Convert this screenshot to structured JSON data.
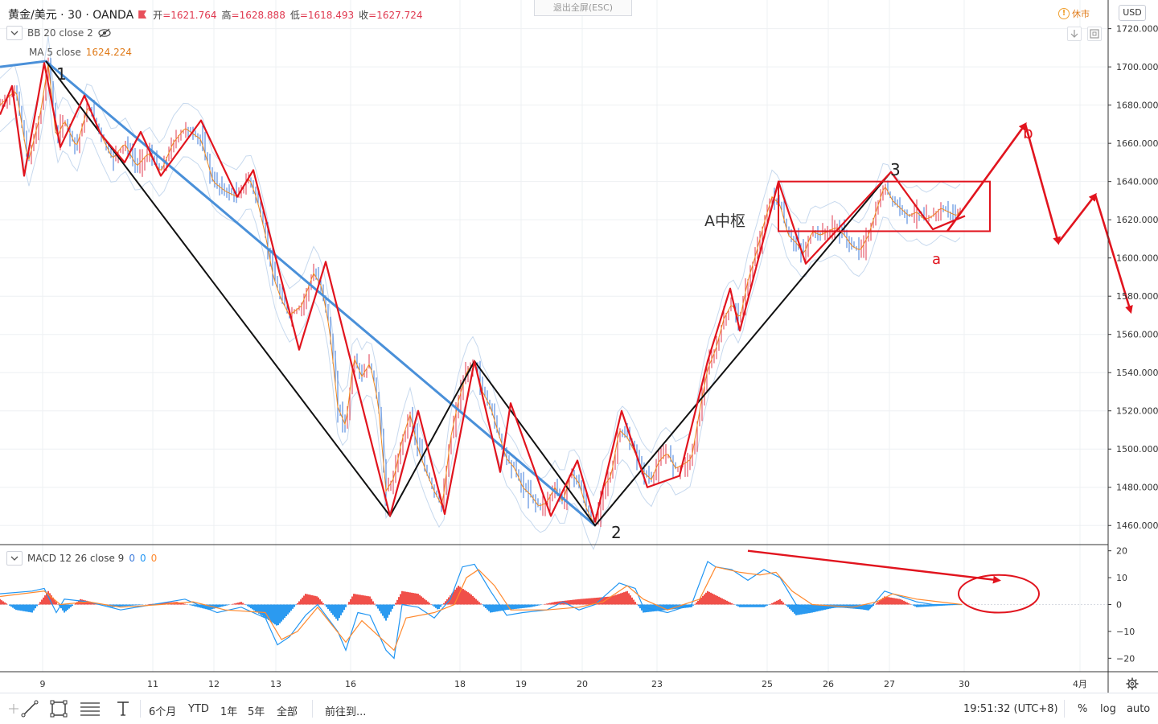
{
  "header": {
    "symbol": "黄金/美元 · 30 · OANDA",
    "ohlc": [
      {
        "label": "开",
        "value": "=1621.764"
      },
      {
        "label": "高",
        "value": "=1628.888"
      },
      {
        "label": "低",
        "value": "=1618.493"
      },
      {
        "label": "收",
        "value": "=1627.724"
      }
    ],
    "esc_label": "退出全屏(ESC)",
    "closed_label": "休市",
    "currency": "USD"
  },
  "indicators": {
    "bb_label": "BB 20 close 2",
    "ma_label": "MA 5 close",
    "ma_value": "1624.224",
    "macd_label": "MACD 12 26 close 9",
    "macd_values": [
      "0",
      "0",
      "0"
    ]
  },
  "colors": {
    "up": "#e0384f",
    "down": "#3d7bdb",
    "wave_red": "#e1141e",
    "trend_black": "#111111",
    "trend_blue": "#4a90d9",
    "macd_line": "#2196f3",
    "signal_line": "#ff8a30",
    "hist_pos": "#f0504a",
    "hist_neg": "#2b9af0"
  },
  "chart_data": {
    "type": "line",
    "title": "黄金/美元 · 30 · OANDA",
    "y_axis": {
      "min": 1450,
      "max": 1735,
      "ticks": [
        "1460.000",
        "1480.000",
        "1500.000",
        "1520.000",
        "1540.000",
        "1560.000",
        "1580.000",
        "1600.000",
        "1620.000",
        "1640.000",
        "1660.000",
        "1680.000",
        "1700.000",
        "1720.000"
      ],
      "tick_values": [
        1460,
        1480,
        1500,
        1520,
        1540,
        1560,
        1580,
        1600,
        1620,
        1640,
        1660,
        1680,
        1700,
        1720
      ]
    },
    "x_axis": {
      "labels": [
        "9",
        "11",
        "12",
        "13",
        "16",
        "18",
        "19",
        "20",
        "23",
        "25",
        "26",
        "27",
        "30",
        "4月"
      ],
      "units": "bar index (30-min bars)"
    },
    "macd_axis": {
      "min": -25,
      "max": 22,
      "ticks": [
        "20",
        "10",
        "0",
        "−10",
        "−20"
      ],
      "tick_values": [
        20,
        10,
        0,
        -10,
        -20
      ]
    },
    "price_series": {
      "name": "price",
      "points": [
        [
          0,
          1680
        ],
        [
          20,
          1688
        ],
        [
          35,
          1650
        ],
        [
          50,
          1675
        ],
        [
          60,
          1702
        ],
        [
          70,
          1662
        ],
        [
          80,
          1672
        ],
        [
          95,
          1658
        ],
        [
          110,
          1680
        ],
        [
          125,
          1665
        ],
        [
          140,
          1652
        ],
        [
          155,
          1660
        ],
        [
          170,
          1648
        ],
        [
          185,
          1655
        ],
        [
          200,
          1645
        ],
        [
          215,
          1660
        ],
        [
          230,
          1668
        ],
        [
          250,
          1662
        ],
        [
          265,
          1640
        ],
        [
          280,
          1635
        ],
        [
          295,
          1632
        ],
        [
          310,
          1642
        ],
        [
          320,
          1630
        ],
        [
          330,
          1612
        ],
        [
          340,
          1590
        ],
        [
          350,
          1578
        ],
        [
          360,
          1570
        ],
        [
          375,
          1575
        ],
        [
          390,
          1592
        ],
        [
          400,
          1585
        ],
        [
          410,
          1562
        ],
        [
          420,
          1522
        ],
        [
          430,
          1512
        ],
        [
          440,
          1548
        ],
        [
          450,
          1538
        ],
        [
          460,
          1545
        ],
        [
          470,
          1525
        ],
        [
          480,
          1478
        ],
        [
          490,
          1485
        ],
        [
          500,
          1505
        ],
        [
          510,
          1518
        ],
        [
          520,
          1500
        ],
        [
          530,
          1488
        ],
        [
          540,
          1478
        ],
        [
          550,
          1470
        ],
        [
          560,
          1505
        ],
        [
          570,
          1525
        ],
        [
          580,
          1540
        ],
        [
          590,
          1546
        ],
        [
          600,
          1530
        ],
        [
          610,
          1522
        ],
        [
          620,
          1508
        ],
        [
          630,
          1495
        ],
        [
          640,
          1490
        ],
        [
          650,
          1480
        ],
        [
          660,
          1476
        ],
        [
          670,
          1470
        ],
        [
          680,
          1472
        ],
        [
          690,
          1480
        ],
        [
          700,
          1472
        ],
        [
          710,
          1488
        ],
        [
          720,
          1482
        ],
        [
          730,
          1468
        ],
        [
          740,
          1460
        ],
        [
          750,
          1480
        ],
        [
          760,
          1486
        ],
        [
          770,
          1510
        ],
        [
          780,
          1506
        ],
        [
          790,
          1498
        ],
        [
          800,
          1488
        ],
        [
          810,
          1484
        ],
        [
          820,
          1494
        ],
        [
          830,
          1498
        ],
        [
          840,
          1490
        ],
        [
          850,
          1492
        ],
        [
          860,
          1495
        ],
        [
          870,
          1520
        ],
        [
          880,
          1542
        ],
        [
          890,
          1552
        ],
        [
          900,
          1568
        ],
        [
          910,
          1576
        ],
        [
          920,
          1568
        ],
        [
          930,
          1588
        ],
        [
          940,
          1602
        ],
        [
          950,
          1618
        ],
        [
          960,
          1632
        ],
        [
          970,
          1628
        ],
        [
          980,
          1612
        ],
        [
          990,
          1608
        ],
        [
          1000,
          1602
        ],
        [
          1010,
          1614
        ],
        [
          1020,
          1612
        ],
        [
          1030,
          1614
        ],
        [
          1040,
          1616
        ],
        [
          1050,
          1612
        ],
        [
          1060,
          1606
        ],
        [
          1070,
          1604
        ],
        [
          1080,
          1612
        ],
        [
          1090,
          1625
        ],
        [
          1100,
          1638
        ],
        [
          1110,
          1630
        ],
        [
          1120,
          1626
        ],
        [
          1130,
          1622
        ],
        [
          1140,
          1624
        ],
        [
          1150,
          1620
        ],
        [
          1160,
          1622
        ],
        [
          1170,
          1626
        ],
        [
          1180,
          1624
        ],
        [
          1190,
          1622
        ],
        [
          1196,
          1626
        ]
      ]
    },
    "red_zigzag": [
      [
        0,
        1675
      ],
      [
        15,
        1690
      ],
      [
        30,
        1643
      ],
      [
        55,
        1702
      ],
      [
        75,
        1658
      ],
      [
        105,
        1685
      ],
      [
        125,
        1665
      ],
      [
        155,
        1650
      ],
      [
        175,
        1666
      ],
      [
        200,
        1643
      ],
      [
        250,
        1672
      ],
      [
        295,
        1632
      ],
      [
        315,
        1646
      ],
      [
        372,
        1552
      ],
      [
        405,
        1598
      ],
      [
        485,
        1465
      ],
      [
        520,
        1520
      ],
      [
        553,
        1466
      ],
      [
        590,
        1546
      ],
      [
        622,
        1488
      ],
      [
        635,
        1524
      ],
      [
        685,
        1465
      ],
      [
        718,
        1494
      ],
      [
        740,
        1462
      ],
      [
        773,
        1520
      ],
      [
        805,
        1480
      ],
      [
        845,
        1486
      ],
      [
        880,
        1546
      ],
      [
        908,
        1584
      ],
      [
        920,
        1562
      ],
      [
        968,
        1640
      ],
      [
        1002,
        1597
      ],
      [
        1108,
        1645
      ],
      [
        1160,
        1615
      ],
      [
        1200,
        1622
      ]
    ],
    "black_zigzag": [
      [
        57,
        1703
      ],
      [
        485,
        1465
      ],
      [
        590,
        1546
      ],
      [
        740,
        1460
      ],
      [
        1108,
        1645
      ]
    ],
    "blue_trendline": [
      [
        0,
        1700
      ],
      [
        57,
        1703
      ],
      [
        740,
        1460
      ]
    ],
    "zhongshu_box": {
      "x0": 968,
      "x1": 1231,
      "y_low": 1614,
      "y_high": 1640
    },
    "projection": [
      [
        1178,
        1614
      ],
      [
        1275,
        1670
      ],
      [
        1316,
        1608
      ],
      [
        1362,
        1633
      ],
      [
        1406,
        1572
      ]
    ],
    "macd_series": {
      "macd": [
        [
          0,
          4
        ],
        [
          40,
          5
        ],
        [
          55,
          6
        ],
        [
          70,
          -3
        ],
        [
          80,
          2
        ],
        [
          110,
          1
        ],
        [
          150,
          -2
        ],
        [
          190,
          0
        ],
        [
          230,
          2
        ],
        [
          270,
          -3
        ],
        [
          300,
          -1
        ],
        [
          330,
          -5
        ],
        [
          345,
          -15
        ],
        [
          360,
          -12
        ],
        [
          380,
          -4
        ],
        [
          395,
          0
        ],
        [
          420,
          -10
        ],
        [
          430,
          -17
        ],
        [
          445,
          -3
        ],
        [
          460,
          -4
        ],
        [
          480,
          -17
        ],
        [
          490,
          -20
        ],
        [
          500,
          0
        ],
        [
          520,
          -1
        ],
        [
          540,
          -5
        ],
        [
          560,
          2
        ],
        [
          575,
          14
        ],
        [
          590,
          15
        ],
        [
          610,
          5
        ],
        [
          630,
          -4
        ],
        [
          650,
          -3
        ],
        [
          680,
          -2
        ],
        [
          700,
          1
        ],
        [
          720,
          -2
        ],
        [
          740,
          0
        ],
        [
          770,
          8
        ],
        [
          790,
          6
        ],
        [
          800,
          -1
        ],
        [
          830,
          -3
        ],
        [
          860,
          0
        ],
        [
          880,
          16
        ],
        [
          890,
          14
        ],
        [
          910,
          13
        ],
        [
          930,
          9
        ],
        [
          950,
          13
        ],
        [
          970,
          10
        ],
        [
          990,
          0
        ],
        [
          1010,
          -2
        ],
        [
          1040,
          -1
        ],
        [
          1060,
          -1
        ],
        [
          1080,
          -2
        ],
        [
          1100,
          5
        ],
        [
          1120,
          3
        ],
        [
          1140,
          1
        ],
        [
          1160,
          0
        ],
        [
          1196,
          0
        ]
      ],
      "signal": [
        [
          0,
          3
        ],
        [
          55,
          5
        ],
        [
          75,
          0
        ],
        [
          110,
          1
        ],
        [
          150,
          -1
        ],
        [
          200,
          0
        ],
        [
          240,
          1
        ],
        [
          280,
          -2
        ],
        [
          330,
          -3
        ],
        [
          350,
          -13
        ],
        [
          370,
          -10
        ],
        [
          395,
          -1
        ],
        [
          430,
          -14
        ],
        [
          450,
          -6
        ],
        [
          490,
          -17
        ],
        [
          505,
          -5
        ],
        [
          540,
          -3
        ],
        [
          565,
          0
        ],
        [
          580,
          10
        ],
        [
          595,
          13
        ],
        [
          615,
          7
        ],
        [
          635,
          -2
        ],
        [
          680,
          -2
        ],
        [
          720,
          -1
        ],
        [
          750,
          1
        ],
        [
          780,
          7
        ],
        [
          800,
          2
        ],
        [
          830,
          -2
        ],
        [
          870,
          2
        ],
        [
          890,
          14
        ],
        [
          920,
          12
        ],
        [
          945,
          11
        ],
        [
          965,
          12
        ],
        [
          985,
          5
        ],
        [
          1010,
          0
        ],
        [
          1060,
          -1
        ],
        [
          1090,
          1
        ],
        [
          1110,
          4
        ],
        [
          1140,
          2
        ],
        [
          1196,
          0
        ]
      ],
      "histogram": [
        [
          0,
          2
        ],
        [
          20,
          -2
        ],
        [
          40,
          -3
        ],
        [
          60,
          5
        ],
        [
          80,
          -3
        ],
        [
          100,
          2
        ],
        [
          140,
          -1
        ],
        [
          180,
          0
        ],
        [
          220,
          1
        ],
        [
          260,
          -2
        ],
        [
          300,
          1
        ],
        [
          330,
          -5
        ],
        [
          345,
          -8
        ],
        [
          360,
          -3
        ],
        [
          380,
          4
        ],
        [
          395,
          3
        ],
        [
          420,
          -6
        ],
        [
          440,
          4
        ],
        [
          460,
          3
        ],
        [
          480,
          -6
        ],
        [
          500,
          5
        ],
        [
          520,
          4
        ],
        [
          545,
          -2
        ],
        [
          570,
          7
        ],
        [
          585,
          4
        ],
        [
          610,
          -3
        ],
        [
          630,
          -2
        ],
        [
          660,
          -1
        ],
        [
          690,
          1
        ],
        [
          720,
          2
        ],
        [
          760,
          3
        ],
        [
          780,
          5
        ],
        [
          800,
          -3
        ],
        [
          830,
          -2
        ],
        [
          860,
          -1
        ],
        [
          880,
          5
        ],
        [
          900,
          2
        ],
        [
          920,
          -1
        ],
        [
          950,
          -1
        ],
        [
          970,
          2
        ],
        [
          990,
          -4
        ],
        [
          1010,
          -3
        ],
        [
          1040,
          -1
        ],
        [
          1080,
          -2
        ],
        [
          1100,
          3
        ],
        [
          1120,
          2
        ],
        [
          1140,
          -1
        ],
        [
          1196,
          0
        ]
      ]
    },
    "macd_arrow": [
      [
        930,
        20
      ],
      [
        1242,
        9
      ]
    ],
    "macd_ellipse": {
      "cx": 1242,
      "cy": 4,
      "rx": 50,
      "ry": 7
    }
  },
  "annotations": {
    "label_1": "1",
    "label_2": "2",
    "label_3": "3",
    "label_a": "a",
    "label_b": "b",
    "zhongshu": "A中枢"
  },
  "bottom_bar": {
    "ranges": [
      "6个月",
      "YTD",
      "1年",
      "5年",
      "全部"
    ],
    "goto": "前往到...",
    "time": "19:51:32 (UTC+8)",
    "percent": "%",
    "log": "log",
    "auto": "auto"
  }
}
